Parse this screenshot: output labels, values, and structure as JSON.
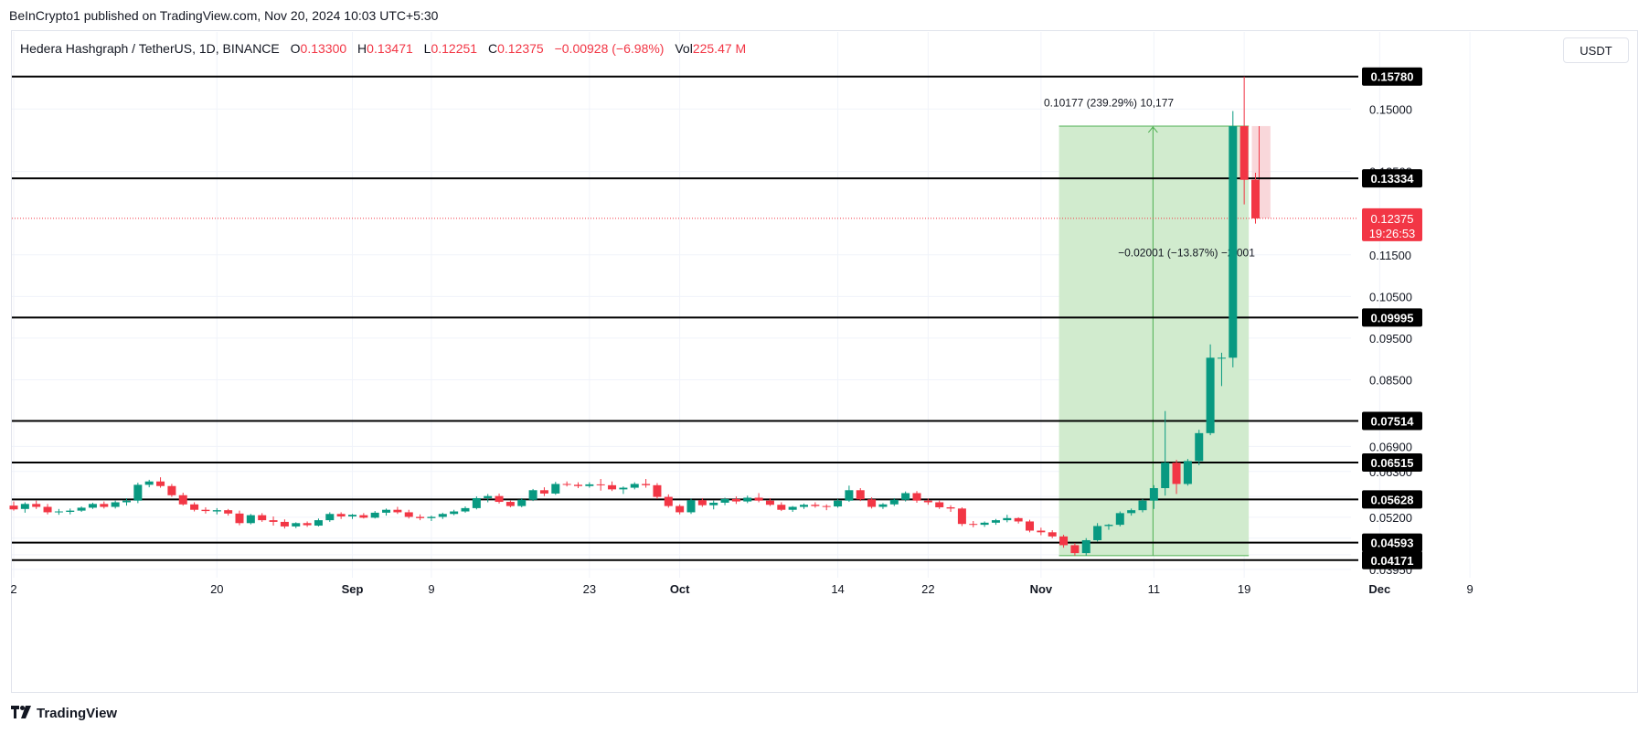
{
  "publisher": "BeInCrypto1 published on TradingView.com, Nov 20, 2024 10:03 UTC+5:30",
  "legend": {
    "symbol": "Hedera Hashgraph / TetherUS, 1D, BINANCE",
    "o_label": "O",
    "o": "0.13300",
    "h_label": "H",
    "h": "0.13471",
    "l_label": "L",
    "l": "0.12251",
    "c_label": "C",
    "c": "0.12375",
    "change": "−0.00928 (−6.98%)",
    "vol_label": "Vol",
    "vol": "225.47 M"
  },
  "currency_button": "USDT",
  "footer": {
    "logo_icon": "tradingview-logo-icon",
    "brand": "TradingView"
  },
  "colors": {
    "up": "#089981",
    "down": "#f23645",
    "level_line": "#000000",
    "projection_fill": "#cfeacb",
    "projection_line": "#4caf50"
  },
  "chart_data": {
    "type": "candlestick",
    "symbol": "HBAR/USDT",
    "timeframe": "1D",
    "x_ticks": [
      "2",
      "20",
      "Sep",
      "9",
      "23",
      "Oct",
      "14",
      "22",
      "Nov",
      "11",
      "19",
      "Dec",
      "9"
    ],
    "y_ticks": [
      "0.15000",
      "0.13500",
      "0.11500",
      "0.10500",
      "0.09500",
      "0.08500",
      "0.06900",
      "0.06300",
      "0.05700",
      "0.05200",
      "0.04700",
      "0.04300",
      "0.03950"
    ],
    "ylim": [
      0.0375,
      0.163
    ],
    "levels": [
      "0.15780",
      "0.13334",
      "0.09995",
      "0.07514",
      "0.06515",
      "0.05628",
      "0.04593",
      "0.04171"
    ],
    "last_price": "0.12375",
    "countdown": "19:26:53",
    "measure_up": "0.10177 (239.29%) 10,177",
    "measure_down": "−0.02001 (−13.87%) −2,001",
    "measure_box": {
      "from": 0.0428,
      "to": 0.1459
    },
    "candles": [
      {
        "date": "Aug 2",
        "o": 0.0548,
        "h": 0.0558,
        "l": 0.0536,
        "c": 0.0539
      },
      {
        "date": "Aug 3",
        "o": 0.054,
        "h": 0.0556,
        "l": 0.0531,
        "c": 0.0552
      },
      {
        "date": "Aug 4",
        "o": 0.0552,
        "h": 0.056,
        "l": 0.054,
        "c": 0.0545
      },
      {
        "date": "Aug 5",
        "o": 0.0545,
        "h": 0.0552,
        "l": 0.0527,
        "c": 0.0532
      },
      {
        "date": "Aug 6",
        "o": 0.0532,
        "h": 0.054,
        "l": 0.0526,
        "c": 0.0534
      },
      {
        "date": "Aug 7",
        "o": 0.0533,
        "h": 0.0541,
        "l": 0.0527,
        "c": 0.0536
      },
      {
        "date": "Aug 8",
        "o": 0.0536,
        "h": 0.0546,
        "l": 0.0533,
        "c": 0.0543
      },
      {
        "date": "Aug 9",
        "o": 0.0543,
        "h": 0.0555,
        "l": 0.054,
        "c": 0.0552
      },
      {
        "date": "Aug 10",
        "o": 0.0552,
        "h": 0.0558,
        "l": 0.0541,
        "c": 0.0545
      },
      {
        "date": "Aug 11",
        "o": 0.0545,
        "h": 0.056,
        "l": 0.0541,
        "c": 0.0556
      },
      {
        "date": "Aug 12",
        "o": 0.0556,
        "h": 0.0566,
        "l": 0.0548,
        "c": 0.056
      },
      {
        "date": "Aug 13",
        "o": 0.056,
        "h": 0.0603,
        "l": 0.0554,
        "c": 0.0598
      },
      {
        "date": "Aug 14",
        "o": 0.0598,
        "h": 0.061,
        "l": 0.0592,
        "c": 0.0606
      },
      {
        "date": "Aug 15",
        "o": 0.0606,
        "h": 0.0616,
        "l": 0.0591,
        "c": 0.0595
      },
      {
        "date": "Aug 16",
        "o": 0.0595,
        "h": 0.06,
        "l": 0.0569,
        "c": 0.0573
      },
      {
        "date": "Aug 17",
        "o": 0.0573,
        "h": 0.0579,
        "l": 0.0548,
        "c": 0.0551
      },
      {
        "date": "Aug 18",
        "o": 0.0551,
        "h": 0.0556,
        "l": 0.0534,
        "c": 0.0538
      },
      {
        "date": "Aug 19",
        "o": 0.0538,
        "h": 0.0544,
        "l": 0.0529,
        "c": 0.0535
      },
      {
        "date": "Aug 20",
        "o": 0.0534,
        "h": 0.0542,
        "l": 0.0527,
        "c": 0.0537
      },
      {
        "date": "Aug 21",
        "o": 0.0537,
        "h": 0.054,
        "l": 0.0524,
        "c": 0.0529
      },
      {
        "date": "Aug 22",
        "o": 0.0529,
        "h": 0.0536,
        "l": 0.0501,
        "c": 0.0506
      },
      {
        "date": "Aug 23",
        "o": 0.0506,
        "h": 0.0528,
        "l": 0.0503,
        "c": 0.0525
      },
      {
        "date": "Aug 24",
        "o": 0.0525,
        "h": 0.053,
        "l": 0.0509,
        "c": 0.0513
      },
      {
        "date": "Aug 25",
        "o": 0.0513,
        "h": 0.0522,
        "l": 0.05,
        "c": 0.0509
      },
      {
        "date": "Aug 26",
        "o": 0.0509,
        "h": 0.0515,
        "l": 0.0493,
        "c": 0.0498
      },
      {
        "date": "Aug 27",
        "o": 0.0498,
        "h": 0.0508,
        "l": 0.0494,
        "c": 0.0506
      },
      {
        "date": "Aug 28",
        "o": 0.0506,
        "h": 0.051,
        "l": 0.0497,
        "c": 0.0501
      },
      {
        "date": "Aug 29",
        "o": 0.05,
        "h": 0.0517,
        "l": 0.0498,
        "c": 0.0513
      },
      {
        "date": "Aug 30",
        "o": 0.0513,
        "h": 0.0532,
        "l": 0.0509,
        "c": 0.0528
      },
      {
        "date": "Aug 31",
        "o": 0.0528,
        "h": 0.0532,
        "l": 0.0516,
        "c": 0.0522
      },
      {
        "date": "Sep 1",
        "o": 0.0522,
        "h": 0.0528,
        "l": 0.0516,
        "c": 0.0526
      },
      {
        "date": "Sep 2",
        "o": 0.0525,
        "h": 0.053,
        "l": 0.0517,
        "c": 0.0519
      },
      {
        "date": "Sep 3",
        "o": 0.0519,
        "h": 0.0535,
        "l": 0.0517,
        "c": 0.0531
      },
      {
        "date": "Sep 4",
        "o": 0.0531,
        "h": 0.0541,
        "l": 0.0524,
        "c": 0.0538
      },
      {
        "date": "Sep 5",
        "o": 0.0538,
        "h": 0.0545,
        "l": 0.0528,
        "c": 0.0532
      },
      {
        "date": "Sep 6",
        "o": 0.0532,
        "h": 0.0538,
        "l": 0.0517,
        "c": 0.0521
      },
      {
        "date": "Sep 7",
        "o": 0.0521,
        "h": 0.0527,
        "l": 0.0513,
        "c": 0.0518
      },
      {
        "date": "Sep 8",
        "o": 0.0518,
        "h": 0.0524,
        "l": 0.0511,
        "c": 0.0521
      },
      {
        "date": "Sep 9",
        "o": 0.0521,
        "h": 0.0531,
        "l": 0.0516,
        "c": 0.0528
      },
      {
        "date": "Sep 10",
        "o": 0.0528,
        "h": 0.0538,
        "l": 0.0525,
        "c": 0.0534
      },
      {
        "date": "Sep 11",
        "o": 0.0534,
        "h": 0.0546,
        "l": 0.0531,
        "c": 0.0542
      },
      {
        "date": "Sep 12",
        "o": 0.0542,
        "h": 0.057,
        "l": 0.0539,
        "c": 0.0566
      },
      {
        "date": "Sep 13",
        "o": 0.0566,
        "h": 0.0576,
        "l": 0.0556,
        "c": 0.0571
      },
      {
        "date": "Sep 14",
        "o": 0.0571,
        "h": 0.0577,
        "l": 0.0553,
        "c": 0.0557
      },
      {
        "date": "Sep 15",
        "o": 0.0557,
        "h": 0.056,
        "l": 0.0544,
        "c": 0.0547
      },
      {
        "date": "Sep 16",
        "o": 0.0547,
        "h": 0.0566,
        "l": 0.0544,
        "c": 0.0562
      },
      {
        "date": "Sep 17",
        "o": 0.0562,
        "h": 0.0588,
        "l": 0.0559,
        "c": 0.0585
      },
      {
        "date": "Sep 18",
        "o": 0.0585,
        "h": 0.0592,
        "l": 0.0571,
        "c": 0.0577
      },
      {
        "date": "Sep 19",
        "o": 0.0577,
        "h": 0.0605,
        "l": 0.0574,
        "c": 0.06
      },
      {
        "date": "Sep 20",
        "o": 0.06,
        "h": 0.0606,
        "l": 0.0594,
        "c": 0.0598
      },
      {
        "date": "Sep 21",
        "o": 0.0598,
        "h": 0.0604,
        "l": 0.059,
        "c": 0.0595
      },
      {
        "date": "Sep 22",
        "o": 0.0595,
        "h": 0.0604,
        "l": 0.0591,
        "c": 0.0599
      },
      {
        "date": "Sep 23",
        "o": 0.0599,
        "h": 0.0612,
        "l": 0.0584,
        "c": 0.0597
      },
      {
        "date": "Sep 24",
        "o": 0.0597,
        "h": 0.0606,
        "l": 0.0583,
        "c": 0.0587
      },
      {
        "date": "Sep 25",
        "o": 0.0587,
        "h": 0.0594,
        "l": 0.0576,
        "c": 0.0591
      },
      {
        "date": "Sep 26",
        "o": 0.0591,
        "h": 0.0604,
        "l": 0.0587,
        "c": 0.06
      },
      {
        "date": "Sep 27",
        "o": 0.06,
        "h": 0.0612,
        "l": 0.0591,
        "c": 0.0597
      },
      {
        "date": "Sep 28",
        "o": 0.0597,
        "h": 0.0602,
        "l": 0.0564,
        "c": 0.0569
      },
      {
        "date": "Sep 29",
        "o": 0.0569,
        "h": 0.0575,
        "l": 0.0543,
        "c": 0.0547
      },
      {
        "date": "Sep 30",
        "o": 0.0547,
        "h": 0.0551,
        "l": 0.0527,
        "c": 0.0532
      },
      {
        "date": "Oct 1",
        "o": 0.0532,
        "h": 0.0565,
        "l": 0.0528,
        "c": 0.0561
      },
      {
        "date": "Oct 2",
        "o": 0.0561,
        "h": 0.0566,
        "l": 0.0545,
        "c": 0.0549
      },
      {
        "date": "Oct 3",
        "o": 0.0549,
        "h": 0.056,
        "l": 0.0539,
        "c": 0.0555
      },
      {
        "date": "Oct 4",
        "o": 0.0555,
        "h": 0.0567,
        "l": 0.0549,
        "c": 0.0564
      },
      {
        "date": "Oct 5",
        "o": 0.0564,
        "h": 0.057,
        "l": 0.0552,
        "c": 0.0558
      },
      {
        "date": "Oct 6",
        "o": 0.0558,
        "h": 0.0572,
        "l": 0.0554,
        "c": 0.0567
      },
      {
        "date": "Oct 7",
        "o": 0.0567,
        "h": 0.0578,
        "l": 0.0556,
        "c": 0.056
      },
      {
        "date": "Oct 8",
        "o": 0.056,
        "h": 0.0566,
        "l": 0.0547,
        "c": 0.055
      },
      {
        "date": "Oct 9",
        "o": 0.055,
        "h": 0.0556,
        "l": 0.0535,
        "c": 0.0538
      },
      {
        "date": "Oct 10",
        "o": 0.0538,
        "h": 0.0547,
        "l": 0.0533,
        "c": 0.0545
      },
      {
        "date": "Oct 11",
        "o": 0.0545,
        "h": 0.0553,
        "l": 0.054,
        "c": 0.055
      },
      {
        "date": "Oct 12",
        "o": 0.055,
        "h": 0.0556,
        "l": 0.0543,
        "c": 0.0547
      },
      {
        "date": "Oct 13",
        "o": 0.0547,
        "h": 0.0551,
        "l": 0.0537,
        "c": 0.0546
      },
      {
        "date": "Oct 14",
        "o": 0.0546,
        "h": 0.0564,
        "l": 0.0543,
        "c": 0.056
      },
      {
        "date": "Oct 15",
        "o": 0.056,
        "h": 0.0596,
        "l": 0.0557,
        "c": 0.0585
      },
      {
        "date": "Oct 16",
        "o": 0.0585,
        "h": 0.059,
        "l": 0.0559,
        "c": 0.0563
      },
      {
        "date": "Oct 17",
        "o": 0.0563,
        "h": 0.0568,
        "l": 0.0541,
        "c": 0.0545
      },
      {
        "date": "Oct 18",
        "o": 0.0545,
        "h": 0.0554,
        "l": 0.054,
        "c": 0.0551
      },
      {
        "date": "Oct 19",
        "o": 0.0551,
        "h": 0.0566,
        "l": 0.0547,
        "c": 0.0562
      },
      {
        "date": "Oct 20",
        "o": 0.0562,
        "h": 0.0582,
        "l": 0.0558,
        "c": 0.0578
      },
      {
        "date": "Oct 21",
        "o": 0.0578,
        "h": 0.0583,
        "l": 0.0555,
        "c": 0.056
      },
      {
        "date": "Oct 22",
        "o": 0.056,
        "h": 0.0565,
        "l": 0.055,
        "c": 0.0556
      },
      {
        "date": "Oct 23",
        "o": 0.0556,
        "h": 0.056,
        "l": 0.054,
        "c": 0.0544
      },
      {
        "date": "Oct 24",
        "o": 0.0544,
        "h": 0.0549,
        "l": 0.0533,
        "c": 0.0541
      },
      {
        "date": "Oct 25",
        "o": 0.0541,
        "h": 0.0544,
        "l": 0.0499,
        "c": 0.0504
      },
      {
        "date": "Oct 26",
        "o": 0.0504,
        "h": 0.0511,
        "l": 0.0496,
        "c": 0.0502
      },
      {
        "date": "Oct 27",
        "o": 0.0502,
        "h": 0.051,
        "l": 0.0497,
        "c": 0.0507
      },
      {
        "date": "Oct 28",
        "o": 0.0507,
        "h": 0.0516,
        "l": 0.0502,
        "c": 0.0513
      },
      {
        "date": "Oct 29",
        "o": 0.0513,
        "h": 0.0526,
        "l": 0.0508,
        "c": 0.0518
      },
      {
        "date": "Oct 30",
        "o": 0.0518,
        "h": 0.052,
        "l": 0.0505,
        "c": 0.051
      },
      {
        "date": "Oct 31",
        "o": 0.051,
        "h": 0.0514,
        "l": 0.0484,
        "c": 0.0488
      },
      {
        "date": "Nov 1",
        "o": 0.0488,
        "h": 0.0495,
        "l": 0.0477,
        "c": 0.0484
      },
      {
        "date": "Nov 2",
        "o": 0.0484,
        "h": 0.0489,
        "l": 0.047,
        "c": 0.0474
      },
      {
        "date": "Nov 3",
        "o": 0.0474,
        "h": 0.0478,
        "l": 0.0447,
        "c": 0.0453
      },
      {
        "date": "Nov 4",
        "o": 0.0453,
        "h": 0.0458,
        "l": 0.0428,
        "c": 0.0434
      },
      {
        "date": "Nov 5",
        "o": 0.0434,
        "h": 0.047,
        "l": 0.0428,
        "c": 0.0465
      },
      {
        "date": "Nov 6",
        "o": 0.0465,
        "h": 0.0506,
        "l": 0.0462,
        "c": 0.0499
      },
      {
        "date": "Nov 7",
        "o": 0.0499,
        "h": 0.0504,
        "l": 0.049,
        "c": 0.0502
      },
      {
        "date": "Nov 8",
        "o": 0.0502,
        "h": 0.0534,
        "l": 0.0498,
        "c": 0.053
      },
      {
        "date": "Nov 9",
        "o": 0.053,
        "h": 0.0541,
        "l": 0.0524,
        "c": 0.0537
      },
      {
        "date": "Nov 10",
        "o": 0.0537,
        "h": 0.0564,
        "l": 0.0532,
        "c": 0.056
      },
      {
        "date": "Nov 11",
        "o": 0.056,
        "h": 0.0597,
        "l": 0.054,
        "c": 0.059
      },
      {
        "date": "Nov 12",
        "o": 0.059,
        "h": 0.0775,
        "l": 0.0572,
        "c": 0.0651
      },
      {
        "date": "Nov 13",
        "o": 0.0651,
        "h": 0.0658,
        "l": 0.0576,
        "c": 0.06
      },
      {
        "date": "Nov 14",
        "o": 0.06,
        "h": 0.066,
        "l": 0.0596,
        "c": 0.0655
      },
      {
        "date": "Nov 15",
        "o": 0.0655,
        "h": 0.073,
        "l": 0.0645,
        "c": 0.0722
      },
      {
        "date": "Nov 16",
        "o": 0.0722,
        "h": 0.0935,
        "l": 0.0717,
        "c": 0.0903
      },
      {
        "date": "Nov 17",
        "o": 0.0903,
        "h": 0.0915,
        "l": 0.0835,
        "c": 0.0903
      },
      {
        "date": "Nov 18",
        "o": 0.0903,
        "h": 0.1495,
        "l": 0.088,
        "c": 0.1459
      },
      {
        "date": "Nov 19",
        "o": 0.1459,
        "h": 0.1578,
        "l": 0.1271,
        "c": 0.133
      },
      {
        "date": "Nov 20",
        "o": 0.133,
        "h": 0.1347,
        "l": 0.1225,
        "c": 0.12375
      }
    ]
  }
}
